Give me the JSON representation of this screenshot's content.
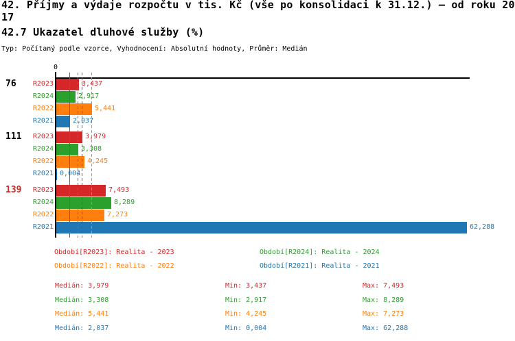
{
  "header": {
    "title_line1": "42. Příjmy a výdaje rozpočtu v tis. Kč (vše po konsolidaci k 31.12.) – od roku 20",
    "title_line2": "17",
    "subtitle": "42.7 Ukazatel dluhové služby (%)",
    "meta": "Typ: Počítaný podle vzorce, Vyhodnocení: Absolutní hodnoty, Průměr: Medián"
  },
  "colors": {
    "R2023": "#d62728",
    "R2024": "#2ca02c",
    "R2022": "#ff7f0e",
    "R2021": "#1f77b4",
    "axis": "#000000",
    "highlight_group_label": "#d62728"
  },
  "chart_data": {
    "type": "bar",
    "orientation": "horizontal",
    "title": "42. Příjmy a výdaje rozpočtu v tis. Kč (vše po konsolidaci k 31.12.) – od roku 2017",
    "subtitle": "42.7 Ukazatel dluhové služby (%)",
    "axis_zero_label": "0",
    "x_range": [
      0,
      62.288
    ],
    "series_order": [
      "R2023",
      "R2024",
      "R2022",
      "R2021"
    ],
    "groups": [
      {
        "label": "76",
        "label_color": "#000000",
        "bars": [
          {
            "series": "R2023",
            "value": 3.437,
            "display": "3,437"
          },
          {
            "series": "R2024",
            "value": 2.917,
            "display": "2,917"
          },
          {
            "series": "R2022",
            "value": 5.441,
            "display": "5,441"
          },
          {
            "series": "R2021",
            "value": 2.037,
            "display": "2,037"
          }
        ]
      },
      {
        "label": "111",
        "label_color": "#000000",
        "bars": [
          {
            "series": "R2023",
            "value": 3.979,
            "display": "3,979"
          },
          {
            "series": "R2024",
            "value": 3.308,
            "display": "3,308"
          },
          {
            "series": "R2022",
            "value": 4.245,
            "display": "4,245"
          },
          {
            "series": "R2021",
            "value": 0.004,
            "display": "0,004"
          }
        ]
      },
      {
        "label": "139",
        "label_color": "#d62728",
        "bars": [
          {
            "series": "R2023",
            "value": 7.493,
            "display": "7,493"
          },
          {
            "series": "R2024",
            "value": 8.289,
            "display": "8,289"
          },
          {
            "series": "R2022",
            "value": 7.273,
            "display": "7,273"
          },
          {
            "series": "R2021",
            "value": 62.288,
            "display": "62,288"
          }
        ]
      }
    ],
    "medians": [
      {
        "series": "R2023",
        "value": 3.979,
        "display": "3,979"
      },
      {
        "series": "R2024",
        "value": 3.308,
        "display": "3,308"
      },
      {
        "series": "R2022",
        "value": 5.441,
        "display": "5,441"
      },
      {
        "series": "R2021",
        "value": 2.037,
        "display": "2,037"
      }
    ]
  },
  "legend": [
    {
      "text": "Období[R2023]: Realita - 2023",
      "series": "R2023"
    },
    {
      "text": "Období[R2024]: Realita - 2024",
      "series": "R2024"
    },
    {
      "text": "Období[R2022]: Realita - 2022",
      "series": "R2022"
    },
    {
      "text": "Období[R2021]: Realita - 2021",
      "series": "R2021"
    }
  ],
  "stats": {
    "median_label": "Medián",
    "min_label": "Min",
    "max_label": "Max",
    "rows": [
      {
        "series": "R2023",
        "median": "3,979",
        "min": "3,437",
        "max": "7,493"
      },
      {
        "series": "R2024",
        "median": "3,308",
        "min": "2,917",
        "max": "8,289"
      },
      {
        "series": "R2022",
        "median": "5,441",
        "min": "4,245",
        "max": "7,273"
      },
      {
        "series": "R2021",
        "median": "2,037",
        "min": "0,004",
        "max": "62,288"
      }
    ]
  }
}
